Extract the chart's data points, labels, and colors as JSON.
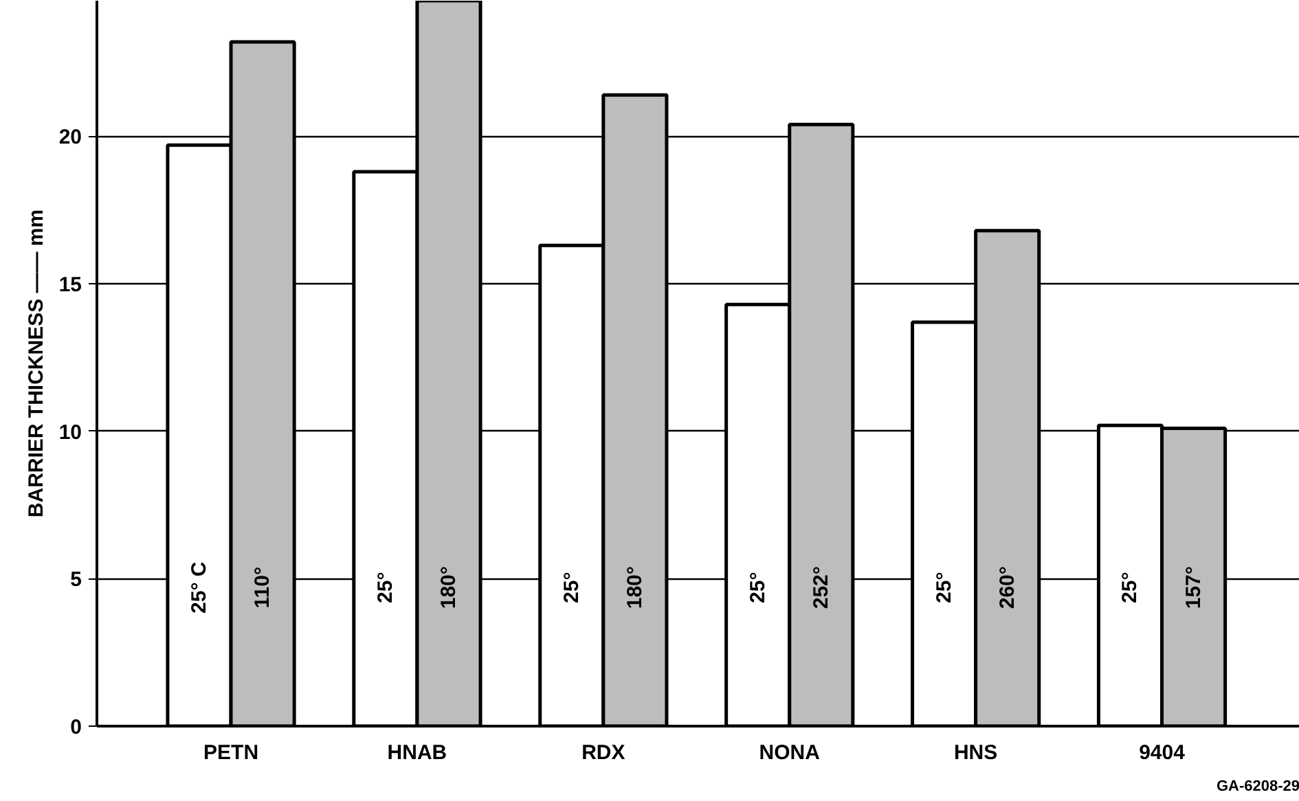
{
  "chart_data": {
    "type": "bar",
    "ylabel": "BARRIER THICKNESS —— mm",
    "categories": [
      "PETN",
      "HNAB",
      "RDX",
      "NONA",
      "HNS",
      "9404"
    ],
    "series": [
      {
        "color": "#ffffff",
        "values": [
          19.7,
          18.8,
          16.3,
          14.3,
          13.7,
          10.2
        ]
      },
      {
        "color": "#bdbdbd",
        "values": [
          23.2,
          24.6,
          21.4,
          20.4,
          16.8,
          10.1
        ]
      }
    ],
    "ylim": [
      0,
      24.6
    ],
    "yticks": [
      0,
      5,
      10,
      15,
      20
    ],
    "grid": "y",
    "annotations": [
      {
        "text": "25° C",
        "x": "PETN",
        "y": 4.7
      },
      {
        "text": "110°",
        "x": "PETN",
        "y": 4.7
      },
      {
        "text": "25°",
        "x": "HNAB",
        "y": 4.7
      },
      {
        "text": "180°",
        "x": "HNAB",
        "y": 4.7
      },
      {
        "text": "25°",
        "x": "RDX",
        "y": 4.7
      },
      {
        "text": "180°",
        "x": "RDX",
        "y": 4.7
      },
      {
        "text": "25°",
        "x": "NONA",
        "y": 4.7
      },
      {
        "text": "252°",
        "x": "NONA",
        "y": 4.7
      },
      {
        "text": "25°",
        "x": "HNS",
        "y": 4.7
      },
      {
        "text": "260°",
        "x": "HNS",
        "y": 4.7
      },
      {
        "text": "25°",
        "x": "9404",
        "y": 4.7
      },
      {
        "text": "157°",
        "x": "9404",
        "y": 4.7
      },
      "GA-6208-29"
    ]
  }
}
